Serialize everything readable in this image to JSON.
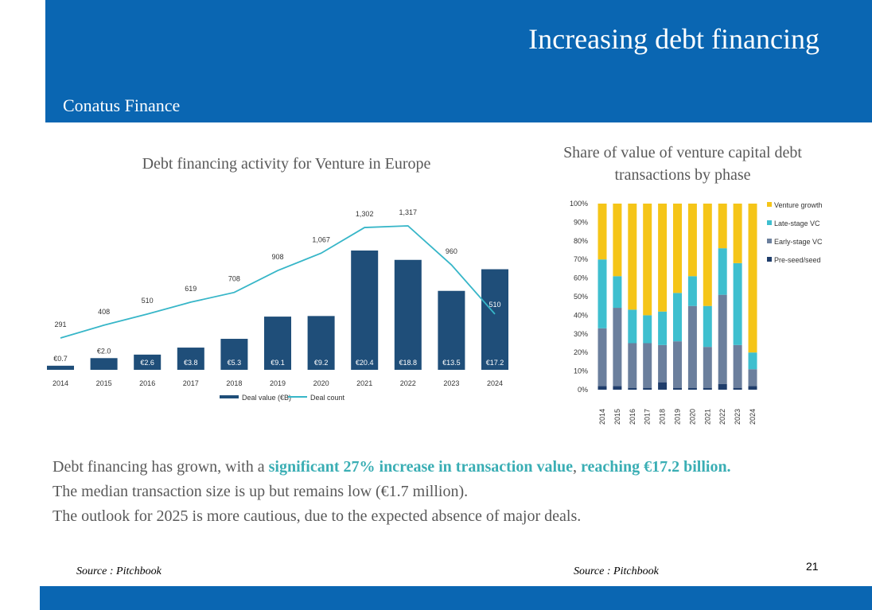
{
  "header": {
    "title": "Increasing debt financing",
    "brand": "Conatus Finance"
  },
  "colors": {
    "header_bg": "#0a66b2",
    "bar_dark": "#1f4e79",
    "line_teal": "#37b6c8",
    "venture_growth": "#f5c518",
    "late_stage": "#3ebfcf",
    "early_stage": "#6b7f9d",
    "pre_seed": "#1f3d6b",
    "highlight": "#3aaeb4"
  },
  "chart_data": [
    {
      "type": "bar",
      "title": "Debt financing activity for Venture in Europe",
      "categories": [
        "2014",
        "2015",
        "2016",
        "2017",
        "2018",
        "2019",
        "2020",
        "2021",
        "2022",
        "2023",
        "2024"
      ],
      "series": [
        {
          "name": "Deal value (€B)",
          "type": "bar",
          "values": [
            0.7,
            2.0,
            2.6,
            3.8,
            5.3,
            9.1,
            9.2,
            20.4,
            18.8,
            13.5,
            17.2
          ],
          "labels": [
            "€0.7",
            "€2.0",
            "€2.6",
            "€3.8",
            "€5.3",
            "€9.1",
            "€9.2",
            "€20.4",
            "€18.8",
            "€13.5",
            "€17.2"
          ]
        },
        {
          "name": "Deal count",
          "type": "line",
          "values": [
            291,
            408,
            510,
            619,
            708,
            908,
            1067,
            1302,
            1317,
            960,
            510
          ],
          "labels": [
            "291",
            "408",
            "510",
            "619",
            "708",
            "908",
            "1,067",
            "1,302",
            "1,317",
            "960",
            "510"
          ]
        }
      ],
      "legend": "bottom",
      "grid": false
    },
    {
      "type": "bar",
      "stacked": true,
      "title": "Share of value of venture capital debt transactions by phase",
      "categories": [
        "2014",
        "2015",
        "2016",
        "2017",
        "2018",
        "2019",
        "2020",
        "2021",
        "2022",
        "2023",
        "2024"
      ],
      "series": [
        {
          "name": "Pre-seed/seed",
          "values": [
            2,
            2,
            1,
            1,
            4,
            1,
            1,
            1,
            3,
            1,
            2
          ]
        },
        {
          "name": "Early-stage VC",
          "values": [
            31,
            42,
            24,
            24,
            20,
            25,
            44,
            22,
            48,
            23,
            9
          ]
        },
        {
          "name": "Late-stage VC",
          "values": [
            37,
            17,
            18,
            15,
            18,
            26,
            16,
            22,
            25,
            44,
            9
          ]
        },
        {
          "name": "Venture growth",
          "values": [
            30,
            39,
            57,
            60,
            58,
            48,
            39,
            55,
            24,
            32,
            80
          ]
        }
      ],
      "yticks": [
        "0%",
        "10%",
        "20%",
        "30%",
        "40%",
        "50%",
        "60%",
        "70%",
        "80%",
        "90%",
        "100%"
      ],
      "ylim": [
        0,
        100
      ],
      "legend": "right",
      "grid": false
    }
  ],
  "body": {
    "p1_a": "Debt financing has grown, with a ",
    "p1_b": "significant 27% increase in transaction value",
    "p1_c": ", ",
    "p1_d": "reaching €17.2 billion.",
    "p2": "The median transaction size is up but remains low (€1.7 million).",
    "p3": "The outlook for 2025 is more cautious, due to the expected absence of major deals."
  },
  "footer": {
    "source_left": "Source : Pitchbook",
    "source_right": "Source : Pitchbook",
    "page_number": "21"
  }
}
